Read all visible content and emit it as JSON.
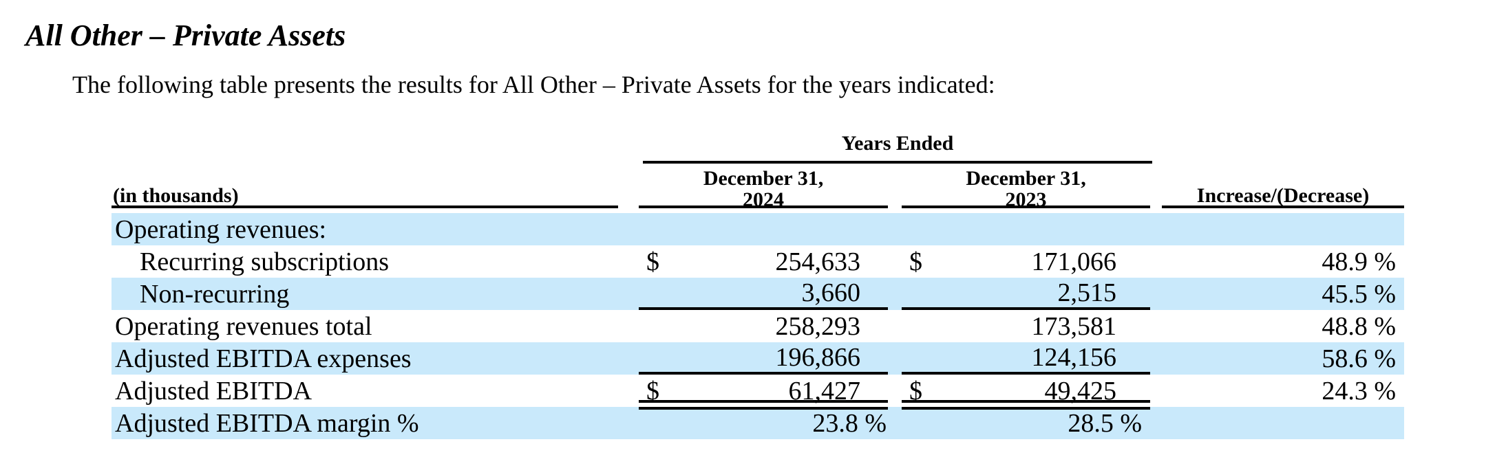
{
  "header": {
    "title": "All Other – Private Assets"
  },
  "intro": "The following table presents the results for All Other – Private Assets for the years indicated:",
  "table": {
    "years_ended_label": "Years Ended",
    "in_thousands_label": "(in thousands)",
    "increase_decrease_label": "Increase/(Decrease)",
    "columns": [
      {
        "line1": "December 31,",
        "line2": "2024"
      },
      {
        "line1": "December 31,",
        "line2": "2023"
      }
    ],
    "rows": [
      {
        "label": "Operating revenues:",
        "indent": false,
        "dollar_2024": "",
        "value_2024": "",
        "dollar_2023": "",
        "value_2023": "",
        "pct": "",
        "shaded": true,
        "rule": "none",
        "value_is_pct": false
      },
      {
        "label": "Recurring subscriptions",
        "indent": true,
        "dollar_2024": "$",
        "value_2024": "254,633",
        "dollar_2023": "$",
        "value_2023": "171,066",
        "pct": "48.9 %",
        "shaded": false,
        "rule": "none",
        "value_is_pct": false
      },
      {
        "label": "Non-recurring",
        "indent": true,
        "dollar_2024": "",
        "value_2024": "3,660",
        "dollar_2023": "",
        "value_2023": "2,515",
        "pct": "45.5 %",
        "shaded": true,
        "rule": "single",
        "value_is_pct": false
      },
      {
        "label": "Operating revenues total",
        "indent": false,
        "dollar_2024": "",
        "value_2024": "258,293",
        "dollar_2023": "",
        "value_2023": "173,581",
        "pct": "48.8 %",
        "shaded": false,
        "rule": "none",
        "value_is_pct": false
      },
      {
        "label": "Adjusted EBITDA expenses",
        "indent": false,
        "dollar_2024": "",
        "value_2024": "196,866",
        "dollar_2023": "",
        "value_2023": "124,156",
        "pct": "58.6 %",
        "shaded": true,
        "rule": "single",
        "value_is_pct": false
      },
      {
        "label": "Adjusted EBITDA",
        "indent": false,
        "dollar_2024": "$",
        "value_2024": "61,427",
        "dollar_2023": "$",
        "value_2023": "49,425",
        "pct": "24.3 %",
        "shaded": false,
        "rule": "double",
        "value_is_pct": false
      },
      {
        "label": "Adjusted EBITDA margin %",
        "indent": false,
        "dollar_2024": "",
        "value_2024": "23.8 %",
        "dollar_2023": "",
        "value_2023": "28.5 %",
        "pct": "",
        "shaded": true,
        "rule": "none",
        "value_is_pct": true
      }
    ]
  },
  "colors": {
    "row_highlight": "#c9e9fb",
    "text": "#000000",
    "rule": "#000000"
  }
}
